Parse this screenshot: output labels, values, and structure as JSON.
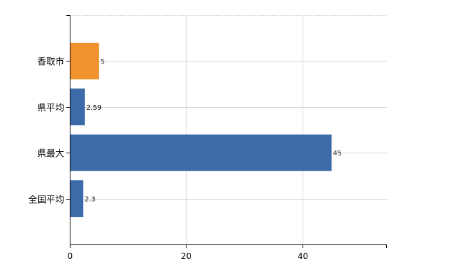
{
  "chart_data": {
    "type": "bar",
    "orientation": "horizontal",
    "categories": [
      "香取市",
      "県平均",
      "県最大",
      "全国平均"
    ],
    "values": [
      5,
      2.59,
      45,
      2.3
    ],
    "data_labels": [
      "5",
      "2.59",
      "45",
      "2.3"
    ],
    "bar_colors": [
      "#f0922e",
      "#3d6aa8",
      "#3d6aa8",
      "#3d6aa8"
    ],
    "title": "",
    "xlabel": "",
    "ylabel": "",
    "xlim": [
      0,
      54.5
    ],
    "x_ticks": [
      0,
      20,
      40
    ],
    "x_tick_labels": [
      "0",
      "20",
      "40"
    ],
    "grid": true,
    "legend": "none"
  }
}
